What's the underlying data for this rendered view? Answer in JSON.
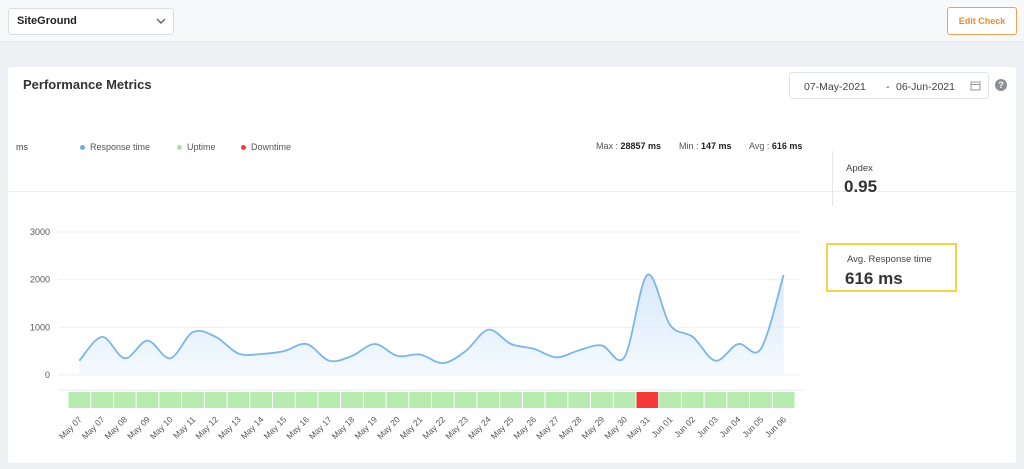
{
  "topbar": {
    "site_select": {
      "value": "SiteGround"
    },
    "edit_button": "Edit Check"
  },
  "card": {
    "title": "Performance Metrics",
    "date_range": {
      "start": "07-May-2021",
      "separator": "-",
      "end": "06-Jun-2021"
    }
  },
  "legend": {
    "unit": "ms",
    "items": [
      {
        "label": "Response time",
        "color": "#6aaaf0"
      },
      {
        "label": "Uptime",
        "color": "#a9e6a0"
      },
      {
        "label": "Downtime",
        "color": "#f23b3b"
      }
    ]
  },
  "stats": {
    "max_label": "Max :",
    "max_value": "28857 ms",
    "min_label": "Min :",
    "min_value": "147 ms",
    "avg_label": "Avg :",
    "avg_value": "616 ms"
  },
  "apdex": {
    "label": "Apdex",
    "value": "0.95"
  },
  "avg_response": {
    "label": "Avg. Response time",
    "value": "616 ms"
  },
  "chart_data": {
    "type": "area",
    "ylabel": "ms",
    "ylim": [
      0,
      3000
    ],
    "yticks": [
      0,
      1000,
      2000,
      3000
    ],
    "grid": true,
    "categories": [
      "May 07",
      "May 07",
      "May 08",
      "May 09",
      "May 10",
      "May 11",
      "May 12",
      "May 13",
      "May 14",
      "May 15",
      "May 16",
      "May 17",
      "May 18",
      "May 19",
      "May 20",
      "May 21",
      "May 22",
      "May 23",
      "May 24",
      "May 25",
      "May 26",
      "May 27",
      "May 28",
      "May 29",
      "May 30",
      "May 31",
      "Jun 01",
      "Jun 02",
      "Jun 03",
      "Jun 04",
      "Jun 05",
      "Jun 06"
    ],
    "series": [
      {
        "name": "Response time",
        "values": [
          300,
          800,
          350,
          720,
          350,
          900,
          800,
          450,
          440,
          500,
          650,
          300,
          400,
          650,
          400,
          430,
          250,
          500,
          950,
          650,
          550,
          370,
          520,
          620,
          380,
          2100,
          1050,
          800,
          300,
          650,
          550,
          2100
        ]
      }
    ],
    "status": [
      "up",
      "up",
      "up",
      "up",
      "up",
      "up",
      "up",
      "up",
      "up",
      "up",
      "up",
      "up",
      "up",
      "up",
      "up",
      "up",
      "up",
      "up",
      "up",
      "up",
      "up",
      "up",
      "up",
      "up",
      "up",
      "down",
      "up",
      "up",
      "up",
      "up",
      "up",
      "up"
    ],
    "status_colors": {
      "up": "#b7ebb0",
      "down": "#f23b3b"
    },
    "line_color": "#7db5ea",
    "fill_color": "#d6e8fb"
  }
}
